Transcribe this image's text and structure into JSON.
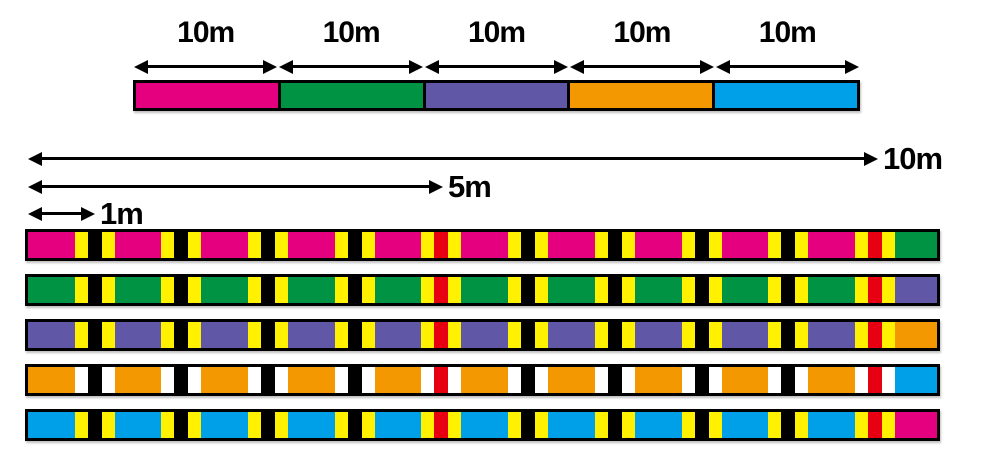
{
  "palette": {
    "magenta": "#E4007F",
    "green": "#009344",
    "purple": "#6058A6",
    "orange": "#F39800",
    "blue": "#00A0E9",
    "yellow": "#FFF100",
    "red": "#E60012",
    "white": "#FFFFFF",
    "black": "#000000"
  },
  "top_scale": {
    "segments": [
      {
        "label": "10m",
        "color": "magenta"
      },
      {
        "label": "10m",
        "color": "green"
      },
      {
        "label": "10m",
        "color": "purple"
      },
      {
        "label": "10m",
        "color": "orange"
      },
      {
        "label": "10m",
        "color": "blue"
      }
    ]
  },
  "rulers": [
    {
      "label": "10m",
      "meters": 10
    },
    {
      "label": "5m",
      "meters": 5
    },
    {
      "label": "1m",
      "meters": 1
    }
  ],
  "marked_lines": [
    {
      "base": "magenta",
      "stripe": "yellow",
      "next": "green",
      "mark_centers": [
        "black",
        "black",
        "black",
        "black",
        "red",
        "black",
        "black",
        "black",
        "black",
        "red"
      ]
    },
    {
      "base": "green",
      "stripe": "yellow",
      "next": "purple",
      "mark_centers": [
        "black",
        "black",
        "black",
        "black",
        "red",
        "black",
        "black",
        "black",
        "black",
        "red"
      ]
    },
    {
      "base": "purple",
      "stripe": "yellow",
      "next": "orange",
      "mark_centers": [
        "black",
        "black",
        "black",
        "black",
        "red",
        "black",
        "black",
        "black",
        "black",
        "red"
      ]
    },
    {
      "base": "orange",
      "stripe": "white",
      "next": "blue",
      "mark_centers": [
        "black",
        "black",
        "black",
        "black",
        "red",
        "black",
        "black",
        "black",
        "black",
        "red"
      ]
    },
    {
      "base": "blue",
      "stripe": "yellow",
      "next": "magenta",
      "mark_centers": [
        "black",
        "black",
        "black",
        "black",
        "red",
        "black",
        "black",
        "black",
        "black",
        "red"
      ]
    }
  ]
}
